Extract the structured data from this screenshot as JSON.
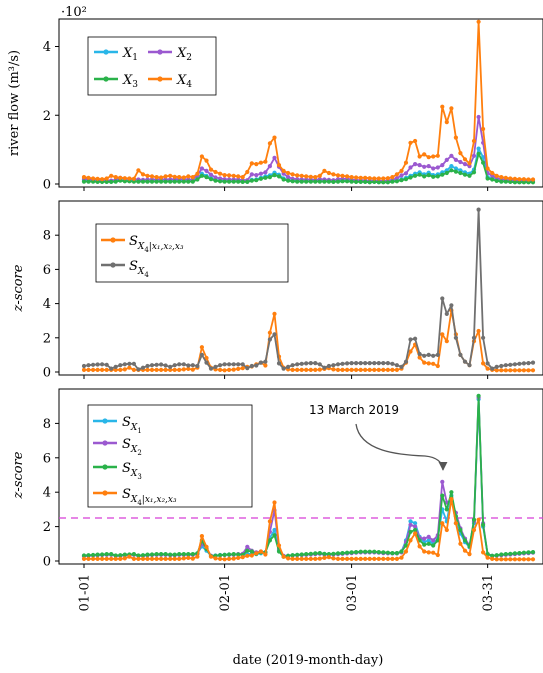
{
  "chart_data": [
    {
      "type": "line",
      "ylabel": "river flow (m³/s)",
      "exponent_label": "·10²",
      "ylim": [
        0,
        4.8
      ],
      "yticks": [
        "0",
        "2",
        "4"
      ],
      "series": [
        {
          "name": "X1",
          "color": "#29b6e8",
          "values": [
            0.09,
            0.09,
            0.08,
            0.08,
            0.07,
            0.07,
            0.07,
            0.08,
            0.12,
            0.1,
            0.1,
            0.09,
            0.08,
            0.08,
            0.08,
            0.08,
            0.08,
            0.09,
            0.08,
            0.08,
            0.09,
            0.09,
            0.09,
            0.08,
            0.08,
            0.16,
            0.3,
            0.24,
            0.17,
            0.12,
            0.1,
            0.09,
            0.08,
            0.08,
            0.08,
            0.07,
            0.07,
            0.12,
            0.13,
            0.18,
            0.22,
            0.25,
            0.33,
            0.27,
            0.16,
            0.12,
            0.1,
            0.09,
            0.08,
            0.08,
            0.08,
            0.08,
            0.09,
            0.08,
            0.08,
            0.07,
            0.09,
            0.1,
            0.1,
            0.08,
            0.07,
            0.07,
            0.07,
            0.06,
            0.07,
            0.06,
            0.06,
            0.06,
            0.08,
            0.1,
            0.14,
            0.18,
            0.24,
            0.3,
            0.34,
            0.28,
            0.33,
            0.26,
            0.28,
            0.34,
            0.4,
            0.52,
            0.45,
            0.4,
            0.34,
            0.3,
            0.42,
            1.03,
            0.78,
            0.2,
            0.16,
            0.11,
            0.09,
            0.08,
            0.07,
            0.06,
            0.06,
            0.06,
            0.06,
            0.06
          ]
        },
        {
          "name": "X2",
          "color": "#9b59d0",
          "values": [
            0.14,
            0.14,
            0.12,
            0.12,
            0.11,
            0.1,
            0.1,
            0.12,
            0.18,
            0.15,
            0.15,
            0.14,
            0.13,
            0.12,
            0.13,
            0.13,
            0.13,
            0.14,
            0.13,
            0.13,
            0.14,
            0.14,
            0.14,
            0.13,
            0.13,
            0.25,
            0.45,
            0.38,
            0.27,
            0.19,
            0.16,
            0.14,
            0.13,
            0.13,
            0.13,
            0.11,
            0.11,
            0.28,
            0.26,
            0.3,
            0.34,
            0.52,
            0.76,
            0.5,
            0.3,
            0.2,
            0.15,
            0.14,
            0.13,
            0.13,
            0.13,
            0.12,
            0.14,
            0.13,
            0.12,
            0.11,
            0.14,
            0.15,
            0.15,
            0.13,
            0.11,
            0.11,
            0.1,
            0.1,
            0.1,
            0.09,
            0.09,
            0.1,
            0.12,
            0.17,
            0.25,
            0.31,
            0.48,
            0.58,
            0.55,
            0.5,
            0.52,
            0.45,
            0.48,
            0.55,
            0.7,
            0.82,
            0.7,
            0.64,
            0.58,
            0.52,
            0.82,
            1.95,
            1.2,
            0.32,
            0.24,
            0.17,
            0.14,
            0.12,
            0.11,
            0.1,
            0.1,
            0.09,
            0.09,
            0.09
          ]
        },
        {
          "name": "X3",
          "color": "#2ab24a",
          "values": [
            0.07,
            0.07,
            0.07,
            0.06,
            0.06,
            0.06,
            0.06,
            0.07,
            0.1,
            0.08,
            0.08,
            0.07,
            0.07,
            0.07,
            0.07,
            0.07,
            0.07,
            0.07,
            0.07,
            0.07,
            0.07,
            0.07,
            0.07,
            0.07,
            0.07,
            0.13,
            0.24,
            0.2,
            0.14,
            0.1,
            0.08,
            0.07,
            0.07,
            0.07,
            0.07,
            0.06,
            0.06,
            0.1,
            0.11,
            0.15,
            0.18,
            0.2,
            0.26,
            0.22,
            0.13,
            0.1,
            0.08,
            0.07,
            0.07,
            0.07,
            0.07,
            0.07,
            0.07,
            0.07,
            0.07,
            0.06,
            0.07,
            0.08,
            0.08,
            0.07,
            0.06,
            0.06,
            0.06,
            0.05,
            0.06,
            0.05,
            0.05,
            0.05,
            0.07,
            0.08,
            0.11,
            0.14,
            0.19,
            0.24,
            0.27,
            0.22,
            0.26,
            0.21,
            0.22,
            0.27,
            0.32,
            0.4,
            0.36,
            0.32,
            0.27,
            0.24,
            0.34,
            0.88,
            0.62,
            0.16,
            0.13,
            0.09,
            0.07,
            0.07,
            0.06,
            0.05,
            0.05,
            0.05,
            0.05,
            0.05
          ]
        },
        {
          "name": "X4",
          "color": "#ff7f0e",
          "values": [
            0.2,
            0.18,
            0.16,
            0.15,
            0.14,
            0.16,
            0.24,
            0.2,
            0.18,
            0.17,
            0.16,
            0.15,
            0.4,
            0.28,
            0.24,
            0.22,
            0.2,
            0.19,
            0.22,
            0.24,
            0.21,
            0.2,
            0.19,
            0.22,
            0.2,
            0.3,
            0.8,
            0.68,
            0.42,
            0.35,
            0.3,
            0.26,
            0.25,
            0.24,
            0.22,
            0.2,
            0.35,
            0.6,
            0.58,
            0.62,
            0.65,
            1.18,
            1.35,
            0.55,
            0.38,
            0.32,
            0.28,
            0.25,
            0.24,
            0.22,
            0.21,
            0.2,
            0.24,
            0.38,
            0.32,
            0.28,
            0.25,
            0.24,
            0.22,
            0.2,
            0.19,
            0.18,
            0.18,
            0.17,
            0.16,
            0.16,
            0.16,
            0.17,
            0.2,
            0.28,
            0.38,
            0.62,
            1.2,
            1.25,
            0.8,
            0.86,
            0.78,
            0.8,
            0.82,
            2.25,
            1.8,
            2.2,
            1.35,
            0.9,
            0.72,
            0.6,
            1.25,
            4.72,
            1.6,
            0.45,
            0.32,
            0.24,
            0.2,
            0.18,
            0.16,
            0.15,
            0.14,
            0.14,
            0.13,
            0.13
          ]
        }
      ]
    },
    {
      "type": "line",
      "ylabel": "z-score",
      "ylim": [
        0,
        10
      ],
      "yticks": [
        "0",
        "2",
        "4",
        "6",
        "8"
      ],
      "series": [
        {
          "name": "S_X4|x1,x2,x3",
          "color": "#ff7f0e",
          "values": [
            0.12,
            0.12,
            0.12,
            0.12,
            0.12,
            0.12,
            0.12,
            0.12,
            0.12,
            0.15,
            0.25,
            0.12,
            0.12,
            0.12,
            0.12,
            0.12,
            0.12,
            0.12,
            0.12,
            0.12,
            0.12,
            0.12,
            0.15,
            0.18,
            0.14,
            0.25,
            1.45,
            0.82,
            0.25,
            0.15,
            0.12,
            0.1,
            0.12,
            0.14,
            0.18,
            0.22,
            0.3,
            0.32,
            0.45,
            0.55,
            0.38,
            2.3,
            3.4,
            0.9,
            0.25,
            0.15,
            0.12,
            0.12,
            0.12,
            0.12,
            0.12,
            0.12,
            0.14,
            0.18,
            0.22,
            0.15,
            0.12,
            0.12,
            0.12,
            0.12,
            0.12,
            0.12,
            0.12,
            0.12,
            0.12,
            0.12,
            0.12,
            0.12,
            0.12,
            0.12,
            0.2,
            0.55,
            1.2,
            1.6,
            0.85,
            0.55,
            0.5,
            0.48,
            0.35,
            2.2,
            1.8,
            3.6,
            2.2,
            1.0,
            0.6,
            0.4,
            1.8,
            2.4,
            0.5,
            0.2,
            0.12,
            0.1,
            0.1,
            0.1,
            0.1,
            0.1,
            0.1,
            0.1,
            0.1,
            0.1
          ]
        },
        {
          "name": "S_X4",
          "color": "#707070",
          "values": [
            0.35,
            0.4,
            0.42,
            0.44,
            0.45,
            0.42,
            0.2,
            0.3,
            0.4,
            0.45,
            0.48,
            0.48,
            0.15,
            0.25,
            0.35,
            0.4,
            0.42,
            0.44,
            0.38,
            0.3,
            0.4,
            0.45,
            0.45,
            0.38,
            0.4,
            0.35,
            1.0,
            0.55,
            0.2,
            0.3,
            0.4,
            0.45,
            0.45,
            0.45,
            0.45,
            0.45,
            0.22,
            0.35,
            0.38,
            0.55,
            0.6,
            1.9,
            2.2,
            0.5,
            0.2,
            0.3,
            0.4,
            0.45,
            0.48,
            0.5,
            0.52,
            0.52,
            0.45,
            0.25,
            0.35,
            0.4,
            0.45,
            0.48,
            0.5,
            0.52,
            0.52,
            0.52,
            0.52,
            0.52,
            0.52,
            0.52,
            0.52,
            0.52,
            0.48,
            0.4,
            0.3,
            0.6,
            1.9,
            1.95,
            1.05,
            0.95,
            1.0,
            0.95,
            1.0,
            4.3,
            3.4,
            3.9,
            2.0,
            1.0,
            0.6,
            0.4,
            2.0,
            9.5,
            2.0,
            0.5,
            0.2,
            0.3,
            0.35,
            0.4,
            0.42,
            0.45,
            0.48,
            0.5,
            0.52,
            0.55
          ]
        }
      ]
    },
    {
      "type": "line",
      "ylabel": "z-score",
      "ylim": [
        0,
        10
      ],
      "yticks": [
        "0",
        "2",
        "4",
        "6",
        "8"
      ],
      "threshold": {
        "value": 2.5,
        "color": "#d63fd6"
      },
      "annotation": {
        "text": "13 March 2019",
        "x_index": 82,
        "y_value": 4.6
      },
      "series": [
        {
          "name": "S_X1",
          "color": "#29b6e8",
          "values": [
            0.3,
            0.32,
            0.33,
            0.35,
            0.36,
            0.38,
            0.38,
            0.3,
            0.32,
            0.35,
            0.36,
            0.38,
            0.3,
            0.32,
            0.35,
            0.36,
            0.38,
            0.38,
            0.38,
            0.35,
            0.35,
            0.38,
            0.38,
            0.38,
            0.38,
            0.45,
            0.85,
            0.6,
            0.3,
            0.32,
            0.35,
            0.36,
            0.38,
            0.38,
            0.38,
            0.38,
            0.4,
            0.42,
            0.4,
            0.45,
            0.5,
            1.35,
            1.8,
            0.6,
            0.25,
            0.3,
            0.33,
            0.35,
            0.36,
            0.38,
            0.4,
            0.42,
            0.44,
            0.4,
            0.38,
            0.4,
            0.42,
            0.44,
            0.46,
            0.48,
            0.5,
            0.52,
            0.52,
            0.52,
            0.52,
            0.5,
            0.48,
            0.46,
            0.45,
            0.45,
            0.55,
            1.2,
            2.3,
            2.2,
            1.4,
            1.1,
            1.2,
            1.0,
            1.3,
            3.0,
            2.3,
            3.8,
            2.2,
            1.6,
            1.1,
            0.8,
            2.2,
            9.4,
            2.0,
            0.4,
            0.3,
            0.32,
            0.35,
            0.38,
            0.4,
            0.42,
            0.44,
            0.46,
            0.48,
            0.5
          ]
        },
        {
          "name": "S_X2",
          "color": "#9b59d0",
          "values": [
            0.28,
            0.3,
            0.32,
            0.33,
            0.35,
            0.36,
            0.36,
            0.3,
            0.3,
            0.33,
            0.35,
            0.36,
            0.3,
            0.3,
            0.33,
            0.35,
            0.36,
            0.36,
            0.36,
            0.34,
            0.34,
            0.36,
            0.36,
            0.36,
            0.36,
            0.4,
            1.0,
            0.75,
            0.3,
            0.3,
            0.33,
            0.35,
            0.36,
            0.36,
            0.4,
            0.42,
            0.82,
            0.6,
            0.5,
            0.55,
            0.5,
            1.7,
            2.95,
            0.7,
            0.3,
            0.3,
            0.32,
            0.34,
            0.35,
            0.36,
            0.38,
            0.4,
            0.42,
            0.38,
            0.36,
            0.38,
            0.4,
            0.42,
            0.44,
            0.46,
            0.48,
            0.5,
            0.5,
            0.5,
            0.5,
            0.48,
            0.46,
            0.45,
            0.44,
            0.44,
            0.5,
            1.1,
            2.1,
            2.0,
            1.35,
            1.3,
            1.4,
            1.2,
            1.5,
            4.6,
            3.4,
            3.5,
            2.8,
            1.9,
            1.3,
            0.9,
            2.3,
            9.5,
            2.2,
            0.4,
            0.3,
            0.32,
            0.34,
            0.36,
            0.38,
            0.4,
            0.42,
            0.44,
            0.46,
            0.48
          ]
        },
        {
          "name": "S_X3",
          "color": "#2ab24a",
          "values": [
            0.32,
            0.34,
            0.35,
            0.37,
            0.38,
            0.4,
            0.4,
            0.32,
            0.34,
            0.37,
            0.38,
            0.4,
            0.32,
            0.34,
            0.37,
            0.38,
            0.4,
            0.4,
            0.4,
            0.37,
            0.37,
            0.4,
            0.4,
            0.4,
            0.4,
            0.45,
            1.2,
            0.7,
            0.28,
            0.3,
            0.34,
            0.36,
            0.38,
            0.4,
            0.38,
            0.36,
            0.6,
            0.55,
            0.42,
            0.5,
            0.5,
            1.2,
            1.5,
            0.55,
            0.25,
            0.3,
            0.34,
            0.36,
            0.38,
            0.4,
            0.42,
            0.44,
            0.46,
            0.42,
            0.4,
            0.42,
            0.44,
            0.46,
            0.48,
            0.5,
            0.52,
            0.54,
            0.54,
            0.54,
            0.54,
            0.52,
            0.5,
            0.48,
            0.46,
            0.46,
            0.55,
            0.9,
            1.7,
            1.8,
            1.2,
            0.95,
            1.0,
            0.9,
            1.2,
            3.8,
            3.0,
            4.0,
            2.6,
            1.8,
            1.2,
            0.85,
            2.4,
            9.6,
            2.1,
            0.4,
            0.3,
            0.34,
            0.38,
            0.4,
            0.42,
            0.44,
            0.46,
            0.48,
            0.5,
            0.52
          ]
        },
        {
          "name": "S_X4|x1,x2,x3",
          "color": "#ff7f0e",
          "values": [
            0.12,
            0.12,
            0.12,
            0.12,
            0.12,
            0.12,
            0.12,
            0.12,
            0.12,
            0.15,
            0.25,
            0.12,
            0.12,
            0.12,
            0.12,
            0.12,
            0.12,
            0.12,
            0.12,
            0.12,
            0.12,
            0.12,
            0.15,
            0.18,
            0.14,
            0.25,
            1.45,
            0.82,
            0.25,
            0.15,
            0.12,
            0.1,
            0.12,
            0.14,
            0.18,
            0.22,
            0.3,
            0.32,
            0.45,
            0.55,
            0.38,
            2.3,
            3.4,
            0.9,
            0.25,
            0.15,
            0.12,
            0.12,
            0.12,
            0.12,
            0.12,
            0.12,
            0.14,
            0.18,
            0.22,
            0.15,
            0.12,
            0.12,
            0.12,
            0.12,
            0.12,
            0.12,
            0.12,
            0.12,
            0.12,
            0.12,
            0.12,
            0.12,
            0.12,
            0.12,
            0.2,
            0.55,
            1.2,
            1.6,
            0.85,
            0.55,
            0.5,
            0.48,
            0.35,
            2.2,
            1.8,
            3.6,
            2.2,
            1.0,
            0.6,
            0.4,
            1.8,
            2.4,
            0.5,
            0.2,
            0.12,
            0.1,
            0.1,
            0.1,
            0.1,
            0.1,
            0.1,
            0.1,
            0.1,
            0.1
          ]
        }
      ]
    }
  ],
  "shared_x": {
    "xlabel": "date (2019-month-day)",
    "tick_labels": [
      "01-01",
      "02-01",
      "03-01",
      "03-31"
    ],
    "tick_indices": [
      0,
      31,
      59,
      89
    ],
    "num_points": 100
  }
}
